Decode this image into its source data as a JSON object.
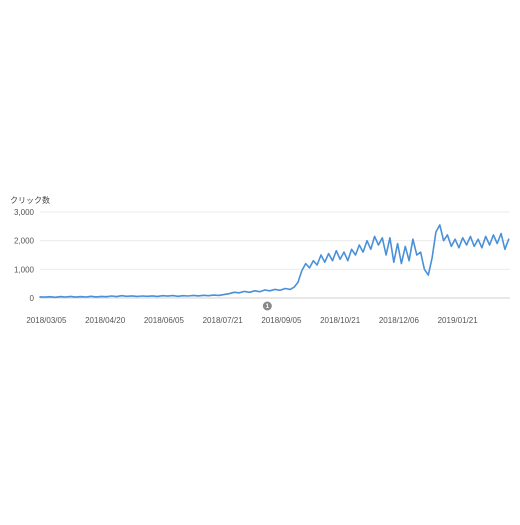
{
  "colors": {
    "series": "#4a90d9",
    "grid": "#ebebeb",
    "text": "#555555",
    "annotation_marker": "#8a8a8a"
  },
  "chart_data": {
    "type": "line",
    "title": "",
    "xlabel": "",
    "ylabel": "クリック数",
    "ylim": [
      0,
      3000
    ],
    "yticks": [
      {
        "value": 0,
        "label": "0"
      },
      {
        "value": 1000,
        "label": "1,000"
      },
      {
        "value": 2000,
        "label": "2,000"
      },
      {
        "value": 3000,
        "label": "3,000"
      }
    ],
    "xlim": [
      "2018-02-28",
      "2019-03-03"
    ],
    "xticks": [
      "2018/03/05",
      "2018/04/20",
      "2018/06/05",
      "2018/07/21",
      "2018/09/05",
      "2018/10/21",
      "2018/12/06",
      "2019/01/21"
    ],
    "grid": true,
    "legend": "none",
    "annotations": [
      {
        "date": "2018-08-25",
        "label": "1"
      }
    ],
    "series": [
      {
        "color": "#4a90d9",
        "points": [
          [
            "2018-02-28",
            40
          ],
          [
            "2018-03-04",
            30
          ],
          [
            "2018-03-08",
            45
          ],
          [
            "2018-03-12",
            25
          ],
          [
            "2018-03-16",
            50
          ],
          [
            "2018-03-20",
            35
          ],
          [
            "2018-03-24",
            55
          ],
          [
            "2018-03-28",
            30
          ],
          [
            "2018-04-01",
            50
          ],
          [
            "2018-04-05",
            35
          ],
          [
            "2018-04-09",
            60
          ],
          [
            "2018-04-13",
            40
          ],
          [
            "2018-04-17",
            55
          ],
          [
            "2018-04-21",
            45
          ],
          [
            "2018-04-25",
            70
          ],
          [
            "2018-04-29",
            50
          ],
          [
            "2018-05-03",
            80
          ],
          [
            "2018-05-07",
            60
          ],
          [
            "2018-05-11",
            75
          ],
          [
            "2018-05-15",
            55
          ],
          [
            "2018-05-19",
            70
          ],
          [
            "2018-05-23",
            60
          ],
          [
            "2018-05-27",
            75
          ],
          [
            "2018-05-31",
            55
          ],
          [
            "2018-06-04",
            80
          ],
          [
            "2018-06-08",
            65
          ],
          [
            "2018-06-12",
            85
          ],
          [
            "2018-06-16",
            60
          ],
          [
            "2018-06-20",
            80
          ],
          [
            "2018-06-24",
            70
          ],
          [
            "2018-06-28",
            90
          ],
          [
            "2018-07-02",
            75
          ],
          [
            "2018-07-06",
            95
          ],
          [
            "2018-07-10",
            80
          ],
          [
            "2018-07-14",
            100
          ],
          [
            "2018-07-18",
            90
          ],
          [
            "2018-07-22",
            120
          ],
          [
            "2018-07-26",
            150
          ],
          [
            "2018-07-30",
            200
          ],
          [
            "2018-08-03",
            180
          ],
          [
            "2018-08-07",
            230
          ],
          [
            "2018-08-11",
            200
          ],
          [
            "2018-08-15",
            250
          ],
          [
            "2018-08-19",
            220
          ],
          [
            "2018-08-23",
            280
          ],
          [
            "2018-08-27",
            250
          ],
          [
            "2018-08-31",
            300
          ],
          [
            "2018-09-04",
            270
          ],
          [
            "2018-09-08",
            330
          ],
          [
            "2018-09-12",
            300
          ],
          [
            "2018-09-15",
            380
          ],
          [
            "2018-09-18",
            550
          ],
          [
            "2018-09-21",
            950
          ],
          [
            "2018-09-24",
            1200
          ],
          [
            "2018-09-27",
            1050
          ],
          [
            "2018-09-30",
            1300
          ],
          [
            "2018-10-03",
            1150
          ],
          [
            "2018-10-06",
            1500
          ],
          [
            "2018-10-09",
            1250
          ],
          [
            "2018-10-12",
            1550
          ],
          [
            "2018-10-15",
            1300
          ],
          [
            "2018-10-18",
            1650
          ],
          [
            "2018-10-21",
            1350
          ],
          [
            "2018-10-24",
            1600
          ],
          [
            "2018-10-27",
            1300
          ],
          [
            "2018-10-30",
            1700
          ],
          [
            "2018-11-02",
            1500
          ],
          [
            "2018-11-05",
            1850
          ],
          [
            "2018-11-08",
            1600
          ],
          [
            "2018-11-11",
            2000
          ],
          [
            "2018-11-14",
            1700
          ],
          [
            "2018-11-17",
            2150
          ],
          [
            "2018-11-20",
            1850
          ],
          [
            "2018-11-23",
            2100
          ],
          [
            "2018-11-26",
            1500
          ],
          [
            "2018-11-29",
            2100
          ],
          [
            "2018-12-02",
            1250
          ],
          [
            "2018-12-05",
            1900
          ],
          [
            "2018-12-08",
            1200
          ],
          [
            "2018-12-11",
            1800
          ],
          [
            "2018-12-14",
            1300
          ],
          [
            "2018-12-17",
            2050
          ],
          [
            "2018-12-20",
            1500
          ],
          [
            "2018-12-23",
            1600
          ],
          [
            "2018-12-26",
            1000
          ],
          [
            "2018-12-29",
            800
          ],
          [
            "2019-01-01",
            1400
          ],
          [
            "2019-01-04",
            2300
          ],
          [
            "2019-01-07",
            2550
          ],
          [
            "2019-01-10",
            2000
          ],
          [
            "2019-01-13",
            2200
          ],
          [
            "2019-01-16",
            1800
          ],
          [
            "2019-01-19",
            2050
          ],
          [
            "2019-01-22",
            1750
          ],
          [
            "2019-01-25",
            2100
          ],
          [
            "2019-01-28",
            1850
          ],
          [
            "2019-01-31",
            2150
          ],
          [
            "2019-02-03",
            1800
          ],
          [
            "2019-02-06",
            2050
          ],
          [
            "2019-02-09",
            1750
          ],
          [
            "2019-02-12",
            2150
          ],
          [
            "2019-02-15",
            1850
          ],
          [
            "2019-02-18",
            2200
          ],
          [
            "2019-02-21",
            1900
          ],
          [
            "2019-02-24",
            2250
          ],
          [
            "2019-02-27",
            1700
          ],
          [
            "2019-03-02",
            2050
          ]
        ]
      }
    ]
  }
}
